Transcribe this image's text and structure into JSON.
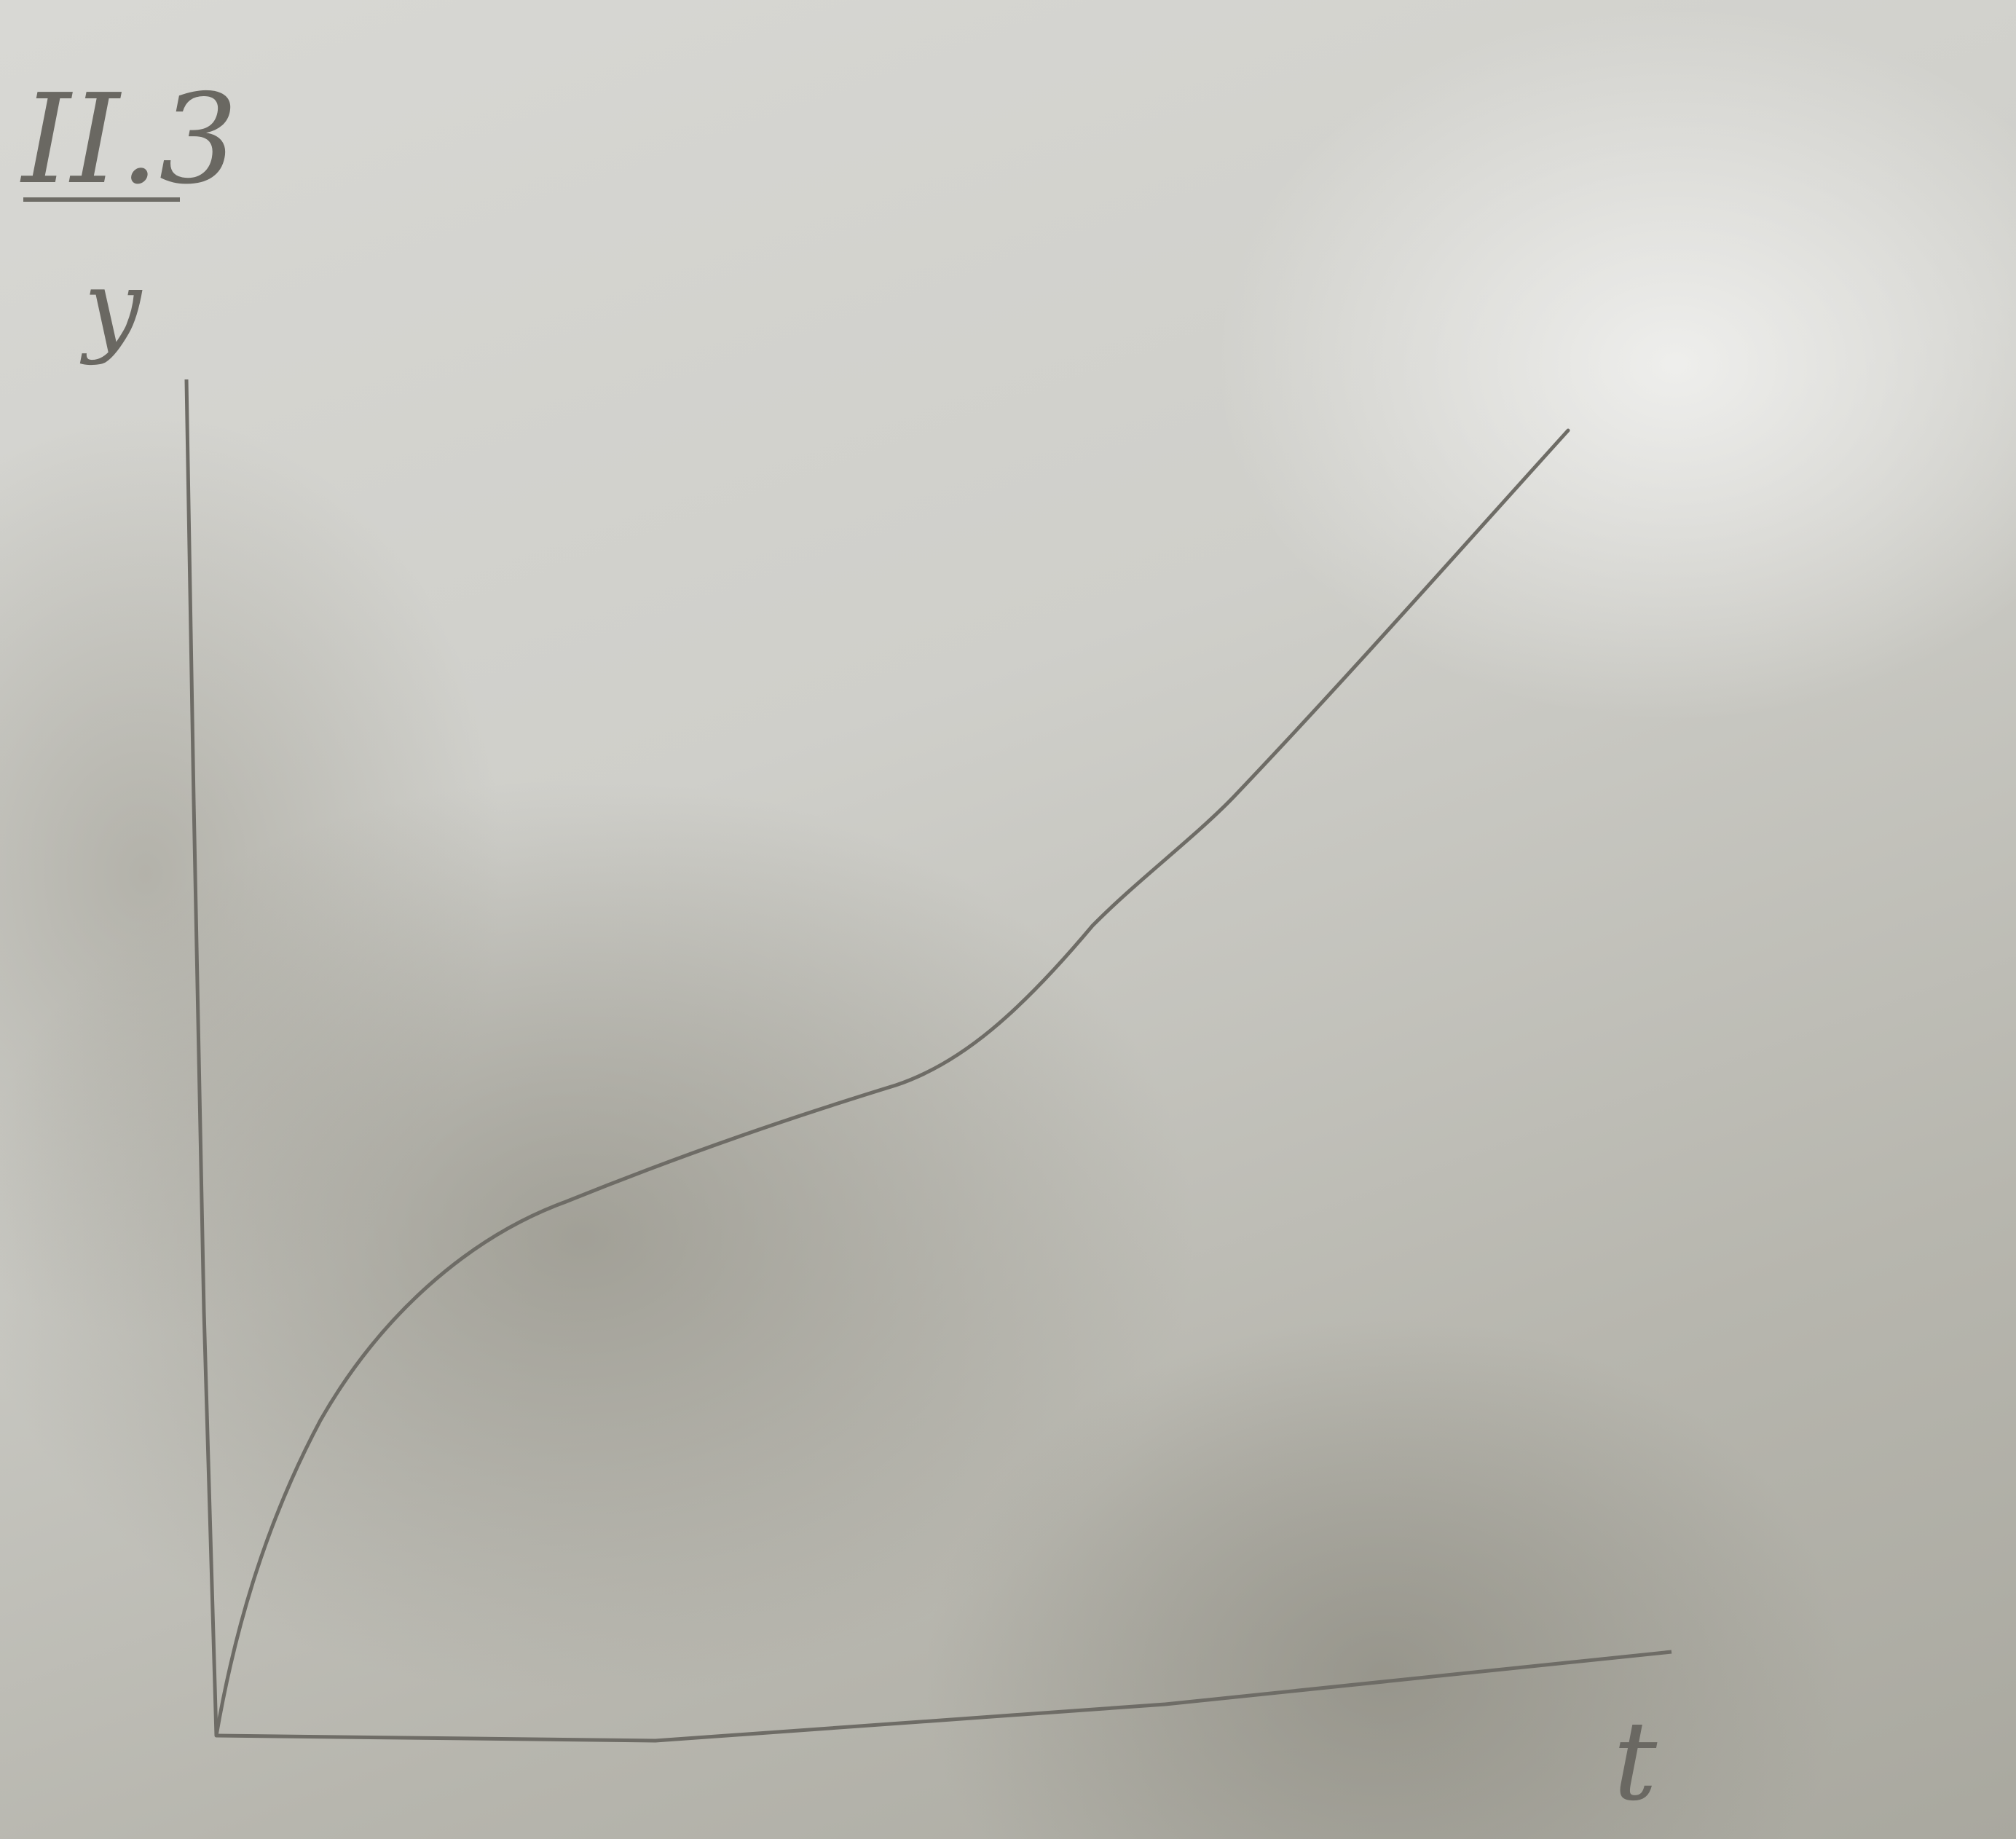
{
  "figure": {
    "label": "II.3",
    "y_axis_label": "y",
    "x_axis_label": "t"
  }
}
